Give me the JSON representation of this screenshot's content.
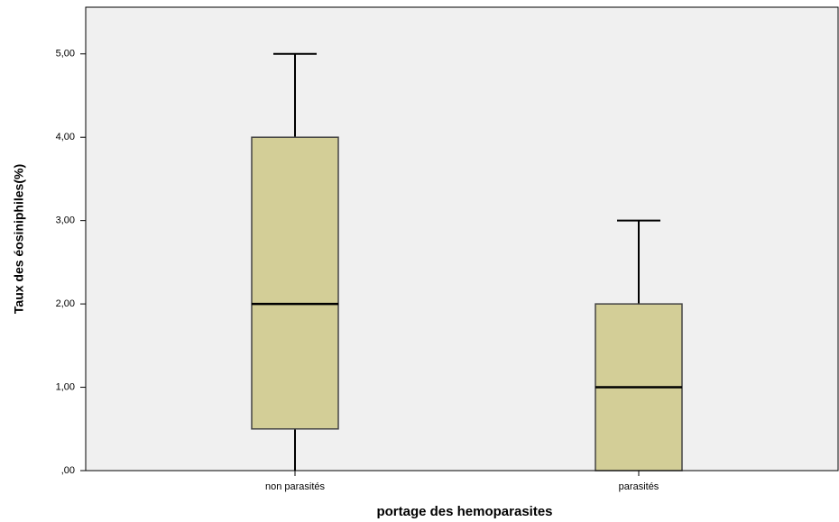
{
  "chart_data": {
    "type": "box",
    "x_label": "portage des hemoparasites",
    "y_label": "Taux des éosiniphiles(%)",
    "categories": [
      "non parasités",
      "parasités"
    ],
    "min": [
      0,
      0
    ],
    "q1": [
      0.5,
      0
    ],
    "median": [
      2,
      1
    ],
    "q3": [
      4,
      2
    ],
    "max": [
      5,
      3
    ],
    "color": "#d3ce97",
    "ylim": [
      0,
      5.56
    ],
    "yticks": [
      {
        "value": 0,
        "label": ",00"
      },
      {
        "value": 1,
        "label": "1,00"
      },
      {
        "value": 2,
        "label": "2,00"
      },
      {
        "value": 3,
        "label": "3,00"
      },
      {
        "value": 4,
        "label": "4,00"
      },
      {
        "value": 5,
        "label": "5,00"
      }
    ]
  }
}
